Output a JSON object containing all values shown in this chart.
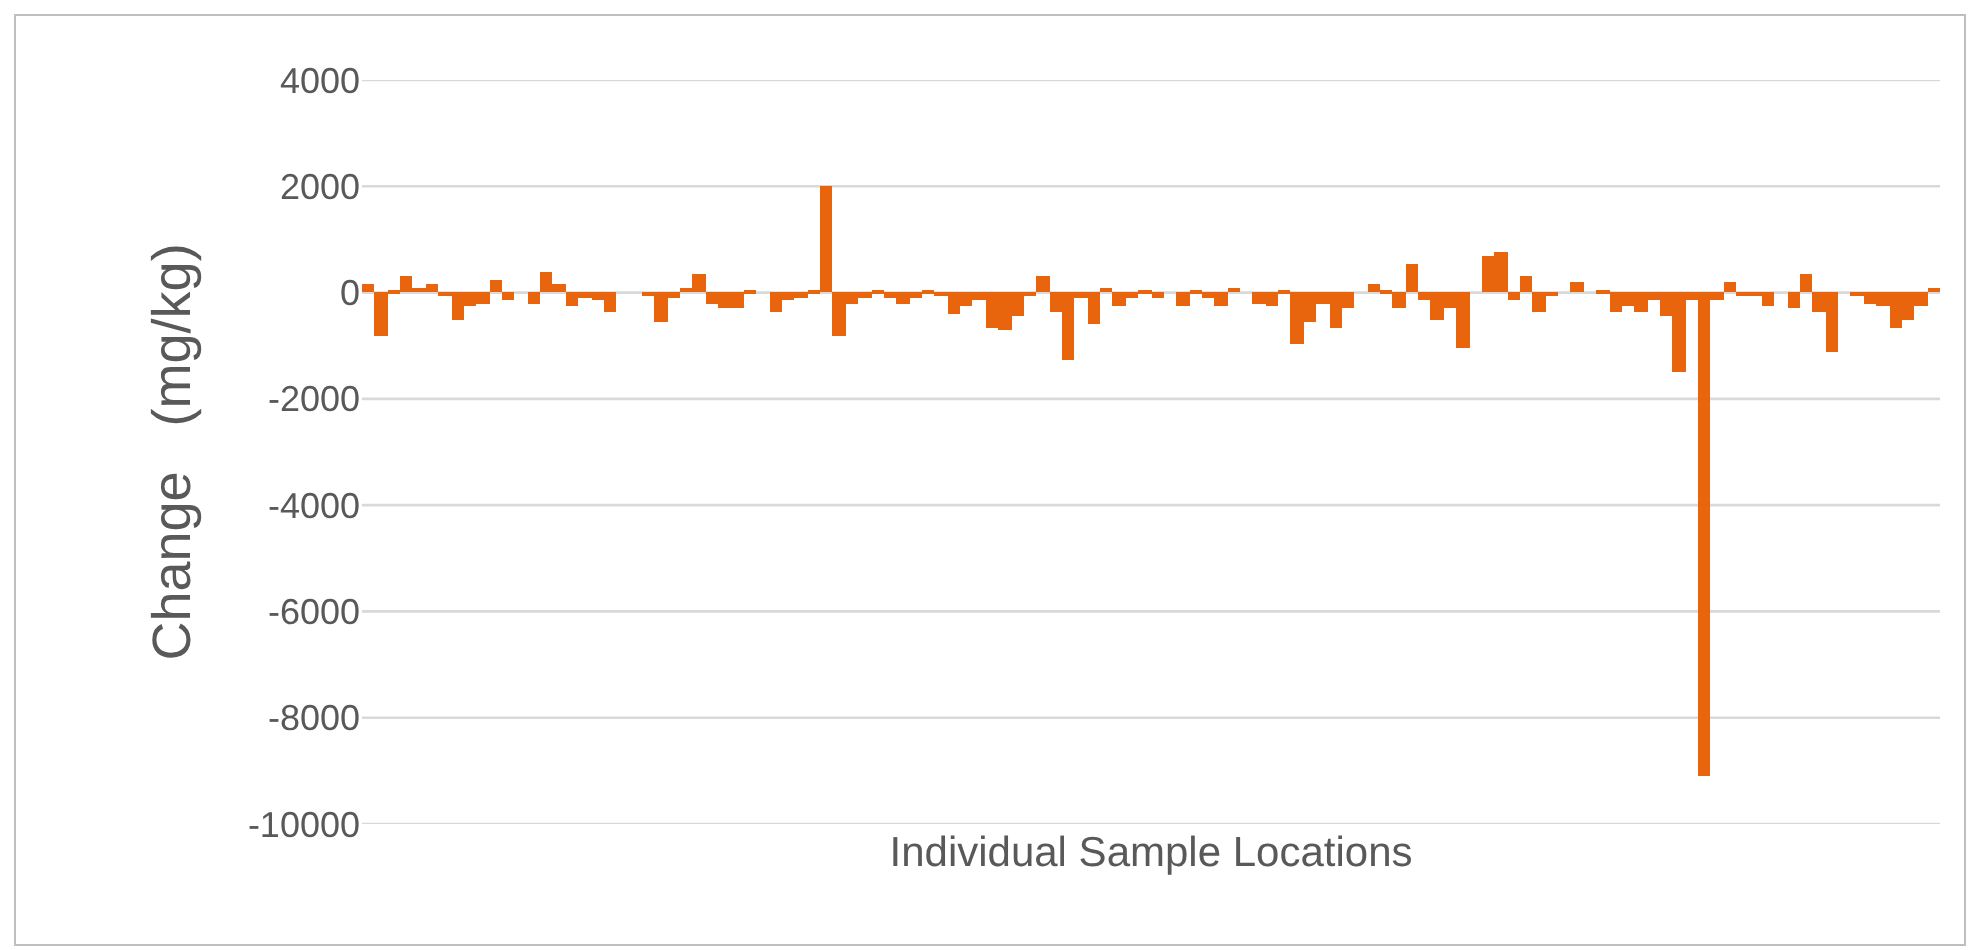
{
  "chart_data": {
    "type": "bar",
    "xlabel": "Individual Sample Locations",
    "ylabel": "Change   (mg/kg)",
    "categories": [
      null,
      null,
      null,
      null,
      null,
      null,
      null,
      null,
      null,
      null,
      null,
      null,
      null,
      null,
      null,
      null,
      null,
      null,
      null,
      null,
      null,
      null,
      null,
      null,
      null,
      null,
      null,
      null,
      null,
      null,
      null,
      null,
      null,
      null,
      null,
      null,
      null,
      null,
      null,
      null,
      null,
      null,
      null,
      null,
      null,
      null,
      null,
      null,
      null,
      null,
      null,
      null,
      null,
      null,
      null,
      null,
      null,
      null,
      null,
      null,
      null,
      null,
      null,
      null,
      null,
      null,
      null,
      null,
      null,
      null,
      null,
      null,
      null,
      null,
      null,
      null,
      null,
      null,
      null,
      null,
      null,
      null,
      null,
      null,
      null,
      null,
      null,
      null,
      null,
      null,
      null,
      null,
      null,
      null,
      null,
      null,
      null,
      null,
      null,
      null,
      null,
      null,
      null,
      null,
      null,
      null,
      null,
      null,
      null,
      null,
      null,
      null,
      null,
      null,
      null,
      null,
      null,
      null,
      null,
      null,
      null,
      null,
      null,
      null
    ],
    "values": [
      150,
      -800,
      50,
      300,
      100,
      150,
      -50,
      -500,
      -250,
      -200,
      250,
      -150,
      0,
      -200,
      400,
      150,
      -250,
      -100,
      -150,
      -350,
      0,
      0,
      -50,
      -550,
      -100,
      100,
      350,
      -200,
      -300,
      -300,
      50,
      0,
      -350,
      -150,
      -100,
      50,
      2000,
      -800,
      -200,
      -100,
      50,
      -100,
      -200,
      -100,
      50,
      -50,
      -400,
      -250,
      -150,
      -650,
      -700,
      -450,
      -50,
      300,
      -350,
      -1250,
      -100,
      -600,
      100,
      -250,
      -100,
      50,
      -100,
      0,
      -250,
      50,
      -100,
      -250,
      100,
      0,
      -200,
      -250,
      50,
      -950,
      -550,
      -200,
      -650,
      -300,
      0,
      150,
      50,
      -300,
      550,
      -150,
      -500,
      -300,
      -1050,
      0,
      700,
      750,
      -150,
      300,
      -350,
      -50,
      0,
      200,
      0,
      50,
      -350,
      -250,
      -350,
      -150,
      -450,
      -1500,
      -150,
      -9100,
      -150,
      200,
      -50,
      -50,
      -250,
      0,
      -300,
      350,
      -350,
      -1100,
      0,
      -50,
      -200,
      -250,
      -650,
      -500,
      -250,
      100
    ],
    "color": "#e8650e",
    "ylim": [
      -10000,
      4000
    ],
    "yticks": [
      -10000,
      -8000,
      -6000,
      -4000,
      -2000,
      0,
      2000,
      4000
    ],
    "grid": "y",
    "tick_labels": "y"
  }
}
